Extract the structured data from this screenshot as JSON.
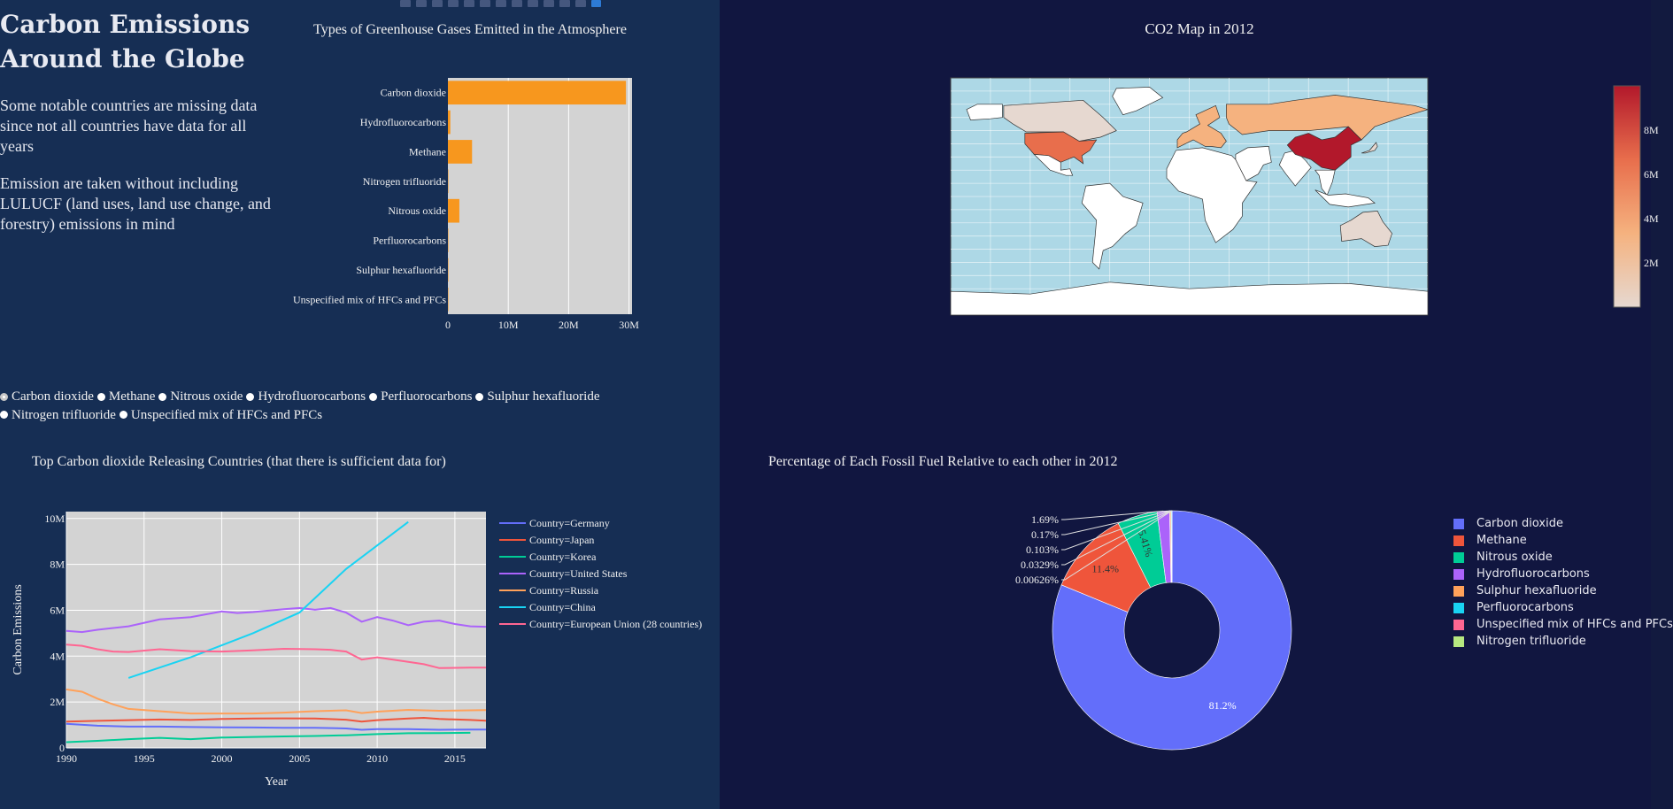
{
  "page": {
    "title": "Carbon Emissions Around the Globe",
    "notes": [
      "Some notable countries are missing data since not all countries have data for all years",
      "Emission are taken without including LULUCF (land uses, land use change, and forestry) emissions in mind"
    ],
    "left_bg": "#162e54",
    "right_bg": "#111640"
  },
  "radio": {
    "selected": "Carbon dioxide",
    "options": [
      "Carbon dioxide",
      "Methane",
      "Nitrous oxide",
      "Hydrofluorocarbons",
      "Perfluorocarbons",
      "Sulphur hexafluoride",
      "Nitrogen trifluoride",
      "Unspecified mix of HFCs and PFCs"
    ]
  },
  "modebar": {
    "icons": [
      "camera-icon",
      "zoom-icon",
      "pan-icon",
      "box-select-icon",
      "lasso-select-icon",
      "zoom-in-icon",
      "zoom-out-icon",
      "autoscale-icon",
      "reset-axes-icon",
      "spike-lines-icon",
      "hover-closest-icon",
      "hover-compare-icon",
      "plotly-logo-icon"
    ]
  },
  "chart_data": [
    {
      "id": "gases_bar",
      "type": "bar",
      "orientation": "h",
      "title": "Types of Greenhouse Gases Emitted in the Atmosphere",
      "categories": [
        "Carbon dioxide",
        "Hydrofluorocarbons",
        "Methane",
        "Nitrogen trifluoride",
        "Nitrous oxide",
        "Perfluorocarbons",
        "Sulphur hexafluoride",
        "Unspecified mix of HFCs and PFCs"
      ],
      "values": [
        29500000,
        400000,
        4000000,
        10000,
        1900000,
        30000,
        60000,
        5000
      ],
      "xlim": [
        0,
        30500000
      ],
      "xticks": [
        0,
        10000000,
        20000000,
        30000000
      ],
      "xtick_labels": [
        "0",
        "10M",
        "20M",
        "30M"
      ],
      "color": "#f7971e",
      "plot_bg": "#d3d3d3",
      "grid": true
    },
    {
      "id": "co2_map",
      "type": "map",
      "title": "CO2 Map in 2012",
      "colorscale": [
        "#e6d8d0",
        "#f5b27f",
        "#e86e4c",
        "#b2182b"
      ],
      "colorbar_ticks": [
        "2M",
        "4M",
        "6M",
        "8M"
      ],
      "ocean_color": "#add8e6",
      "highlighted_regions": [
        {
          "name": "China",
          "level": 1.0
        },
        {
          "name": "United States",
          "level": 0.6
        },
        {
          "name": "Russia",
          "level": 0.22
        },
        {
          "name": "European Union",
          "level": 0.4
        },
        {
          "name": "Japan",
          "level": 0.15
        },
        {
          "name": "Canada",
          "level": 0.1
        },
        {
          "name": "Australia",
          "level": 0.05
        }
      ]
    },
    {
      "id": "country_lines",
      "type": "line",
      "title": "Top Carbon dioxide Releasing Countries (that there is sufficient data for)",
      "xlabel": "Year",
      "ylabel": "Carbon Emissions",
      "xlim": [
        1990,
        2017
      ],
      "ylim": [
        0,
        10300000
      ],
      "xticks": [
        1990,
        1995,
        2000,
        2005,
        2010,
        2015
      ],
      "yticks": [
        0,
        2000000,
        4000000,
        6000000,
        8000000,
        10000000
      ],
      "ytick_labels": [
        "0",
        "2M",
        "4M",
        "6M",
        "8M",
        "10M"
      ],
      "plot_bg": "#d3d3d3",
      "grid": true,
      "series": [
        {
          "name": "Country=Germany",
          "color": "#636efa",
          "x": [
            1990,
            1992,
            1994,
            1996,
            1998,
            2000,
            2002,
            2004,
            2006,
            2008,
            2009,
            2010,
            2012,
            2014,
            2016,
            2017
          ],
          "y": [
            1050000,
            970000,
            930000,
            930000,
            910000,
            900000,
            890000,
            880000,
            880000,
            850000,
            790000,
            820000,
            820000,
            790000,
            800000,
            800000
          ]
        },
        {
          "name": "Country=Japan",
          "color": "#ef553b",
          "x": [
            1990,
            1992,
            1994,
            1996,
            1998,
            2000,
            2002,
            2004,
            2006,
            2008,
            2009,
            2010,
            2012,
            2013,
            2014,
            2016,
            2017
          ],
          "y": [
            1150000,
            1180000,
            1210000,
            1240000,
            1220000,
            1260000,
            1280000,
            1290000,
            1280000,
            1230000,
            1150000,
            1210000,
            1280000,
            1310000,
            1260000,
            1220000,
            1190000
          ]
        },
        {
          "name": "Country=Korea",
          "color": "#00cc96",
          "x": [
            1990,
            1992,
            1994,
            1996,
            1998,
            2000,
            2002,
            2004,
            2006,
            2008,
            2010,
            2012,
            2014,
            2016
          ],
          "y": [
            250000,
            310000,
            380000,
            440000,
            380000,
            450000,
            480000,
            500000,
            520000,
            550000,
            600000,
            640000,
            650000,
            660000
          ]
        },
        {
          "name": "Country=United States",
          "color": "#ab63fa",
          "x": [
            1990,
            1991,
            1992,
            1994,
            1996,
            1998,
            2000,
            2001,
            2002,
            2004,
            2005,
            2006,
            2007,
            2008,
            2009,
            2010,
            2011,
            2012,
            2013,
            2014,
            2015,
            2016,
            2017
          ],
          "y": [
            5100000,
            5050000,
            5150000,
            5300000,
            5600000,
            5700000,
            5950000,
            5880000,
            5920000,
            6050000,
            6100000,
            6020000,
            6100000,
            5900000,
            5500000,
            5700000,
            5550000,
            5350000,
            5500000,
            5550000,
            5400000,
            5300000,
            5280000
          ]
        },
        {
          "name": "Country=Russia",
          "color": "#ffa15a",
          "x": [
            1990,
            1991,
            1992,
            1993,
            1994,
            1996,
            1998,
            2000,
            2002,
            2004,
            2006,
            2008,
            2009,
            2010,
            2012,
            2014,
            2016,
            2017
          ],
          "y": [
            2550000,
            2450000,
            2150000,
            1900000,
            1700000,
            1600000,
            1500000,
            1500000,
            1500000,
            1540000,
            1600000,
            1640000,
            1520000,
            1580000,
            1660000,
            1620000,
            1640000,
            1650000
          ]
        },
        {
          "name": "Country=China",
          "color": "#19d3f3",
          "x": [
            1994,
            1998,
            2002,
            2005,
            2008,
            2012
          ],
          "y": [
            3050000,
            3950000,
            5000000,
            5900000,
            7800000,
            9850000
          ]
        },
        {
          "name": "Country=European Union (28 countries)",
          "color": "#ff6692",
          "x": [
            1990,
            1991,
            1992,
            1993,
            1994,
            1996,
            1998,
            2000,
            2002,
            2004,
            2006,
            2007,
            2008,
            2009,
            2010,
            2012,
            2013,
            2014,
            2016,
            2017
          ],
          "y": [
            4500000,
            4450000,
            4300000,
            4200000,
            4180000,
            4300000,
            4220000,
            4200000,
            4250000,
            4320000,
            4300000,
            4280000,
            4200000,
            3850000,
            3950000,
            3750000,
            3650000,
            3480000,
            3500000,
            3500000
          ]
        }
      ]
    },
    {
      "id": "fuel_pie",
      "type": "pie",
      "hole": true,
      "title": "Percentage of Each Fossil Fuel Relative to each other in 2012",
      "slices": [
        {
          "label": "Carbon dioxide",
          "value": 81.2,
          "text": "81.2%",
          "color": "#636efa"
        },
        {
          "label": "Methane",
          "value": 11.4,
          "text": "11.4%",
          "color": "#ef553b"
        },
        {
          "label": "Nitrous oxide",
          "value": 5.41,
          "text": "5.41%",
          "color": "#00cc96"
        },
        {
          "label": "Hydrofluorocarbons",
          "value": 1.69,
          "text": "1.69%",
          "color": "#ab63fa"
        },
        {
          "label": "Sulphur hexafluoride",
          "value": 0.17,
          "text": "0.17%",
          "color": "#ffa15a"
        },
        {
          "label": "Perfluorocarbons",
          "value": 0.103,
          "text": "0.103%",
          "color": "#19d3f3"
        },
        {
          "label": "Unspecified mix of HFCs and PFCs",
          "value": 0.0329,
          "text": "0.0329%",
          "color": "#ff6692"
        },
        {
          "label": "Nitrogen trifluoride",
          "value": 0.00626,
          "text": "0.00626%",
          "color": "#b6e880"
        }
      ]
    }
  ]
}
